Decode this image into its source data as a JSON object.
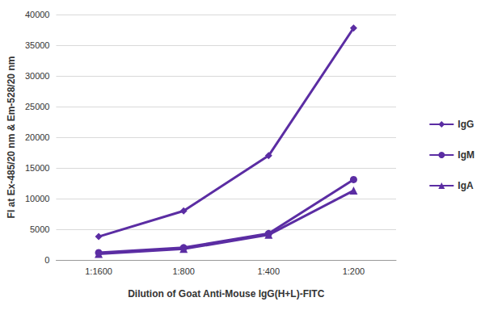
{
  "chart_data": {
    "type": "line",
    "x_label": "Dilution of Goat Anti-Mouse IgG(H+L)-FITC",
    "y_label": "FI at Ex-485/20 nm & Em-528/20 nm",
    "categories": [
      "1:1600",
      "1:800",
      "1:400",
      "1:200"
    ],
    "series": [
      {
        "name": "IgG",
        "color": "#5b2da3",
        "marker": "diamond",
        "values": [
          3800,
          8000,
          17000,
          37800
        ]
      },
      {
        "name": "IgM",
        "color": "#5b2da3",
        "marker": "circle",
        "values": [
          1200,
          2000,
          4300,
          13100
        ]
      },
      {
        "name": "IgA",
        "color": "#5b2da3",
        "marker": "triangle",
        "values": [
          1000,
          1800,
          4100,
          11300
        ]
      }
    ],
    "ylim": [
      0,
      40000
    ],
    "yticks": [
      0,
      5000,
      10000,
      15000,
      20000,
      25000,
      30000,
      35000,
      40000
    ],
    "grid": true,
    "legend": "right"
  }
}
